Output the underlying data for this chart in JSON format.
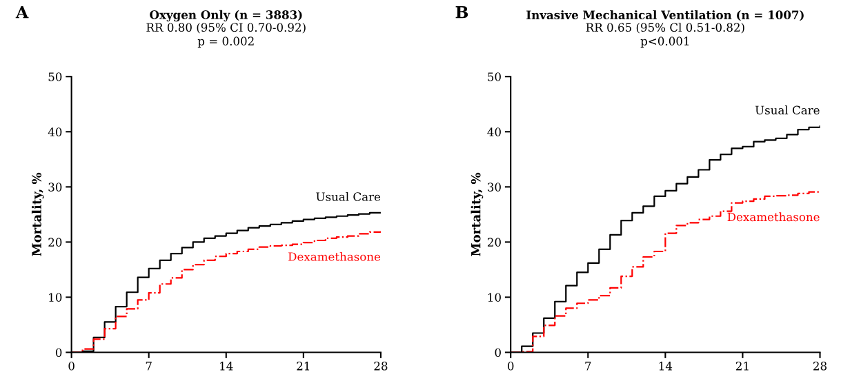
{
  "chart_data": [
    {
      "type": "step",
      "title": "Oxygen Only (n = 3883)",
      "subtitle": "RR 0.80 (95% CI 0.70-0.92)\np = 0.002",
      "ylabel": "Mortality, %",
      "annotations": [
        "A"
      ],
      "x": [
        0,
        1,
        2,
        3,
        4,
        5,
        6,
        7,
        8,
        9,
        10,
        11,
        12,
        13,
        14,
        15,
        16,
        17,
        18,
        19,
        20,
        21,
        22,
        23,
        24,
        25,
        26,
        27,
        28
      ],
      "series": [
        {
          "name": "Usual Care",
          "color": "#000000",
          "line_style": "solid",
          "values": [
            0,
            0.2,
            2.7,
            5.5,
            8.3,
            10.9,
            13.6,
            15.2,
            16.7,
            17.9,
            19.0,
            20.0,
            20.7,
            21.1,
            21.6,
            22.1,
            22.6,
            22.9,
            23.2,
            23.5,
            23.8,
            24.1,
            24.3,
            24.5,
            24.7,
            24.9,
            25.1,
            25.3,
            25.3
          ]
        },
        {
          "name": "Dexamethasone",
          "color": "#ff0000",
          "line_style": "dashdot",
          "values": [
            0,
            0.6,
            2.4,
            4.3,
            6.5,
            7.9,
            9.5,
            10.8,
            12.4,
            13.5,
            15.0,
            15.9,
            16.7,
            17.4,
            17.9,
            18.3,
            18.7,
            19.1,
            19.3,
            19.4,
            19.6,
            19.9,
            20.3,
            20.7,
            20.9,
            21.1,
            21.5,
            21.8,
            22.0
          ]
        }
      ],
      "xlim": [
        0,
        28
      ],
      "xticks": [
        0,
        7,
        14,
        21,
        28
      ],
      "ylim": [
        0,
        50
      ],
      "yticks": [
        0,
        10,
        20,
        30,
        40,
        50
      ],
      "grid": false,
      "legend": false
    },
    {
      "type": "step",
      "title": "Invasive Mechanical Ventilation (n = 1007)",
      "subtitle": "RR 0.65 (95% Cl 0.51-0.82)\np<0.001",
      "ylabel": "Mortality, %",
      "annotations": [
        "B"
      ],
      "x": [
        0,
        1,
        2,
        3,
        4,
        5,
        6,
        7,
        8,
        9,
        10,
        11,
        12,
        13,
        14,
        15,
        16,
        17,
        18,
        19,
        20,
        21,
        22,
        23,
        24,
        25,
        26,
        27,
        28
      ],
      "series": [
        {
          "name": "Usual Care",
          "color": "#000000",
          "line_style": "solid",
          "values": [
            0,
            1.1,
            3.5,
            6.2,
            9.2,
            12.1,
            14.5,
            16.2,
            18.7,
            21.3,
            23.9,
            25.3,
            26.5,
            28.3,
            29.3,
            30.6,
            31.8,
            33.1,
            34.9,
            35.9,
            37.0,
            37.3,
            38.2,
            38.5,
            38.8,
            39.5,
            40.4,
            40.8,
            41.0
          ]
        },
        {
          "name": "Dexamethasone",
          "color": "#ff0000",
          "line_style": "dashdot",
          "values": [
            0,
            0.1,
            2.9,
            4.9,
            6.6,
            8.0,
            8.9,
            9.5,
            10.3,
            11.7,
            13.8,
            15.5,
            17.3,
            18.3,
            21.6,
            23.0,
            23.5,
            24.1,
            24.7,
            25.6,
            27.1,
            27.4,
            27.8,
            28.3,
            28.4,
            28.5,
            28.8,
            29.1,
            29.2
          ]
        }
      ],
      "xlim": [
        0,
        28
      ],
      "xticks": [
        0,
        7,
        14,
        21,
        28
      ],
      "ylim": [
        0,
        50
      ],
      "yticks": [
        0,
        10,
        20,
        30,
        40,
        50
      ],
      "grid": false,
      "legend": false
    }
  ]
}
